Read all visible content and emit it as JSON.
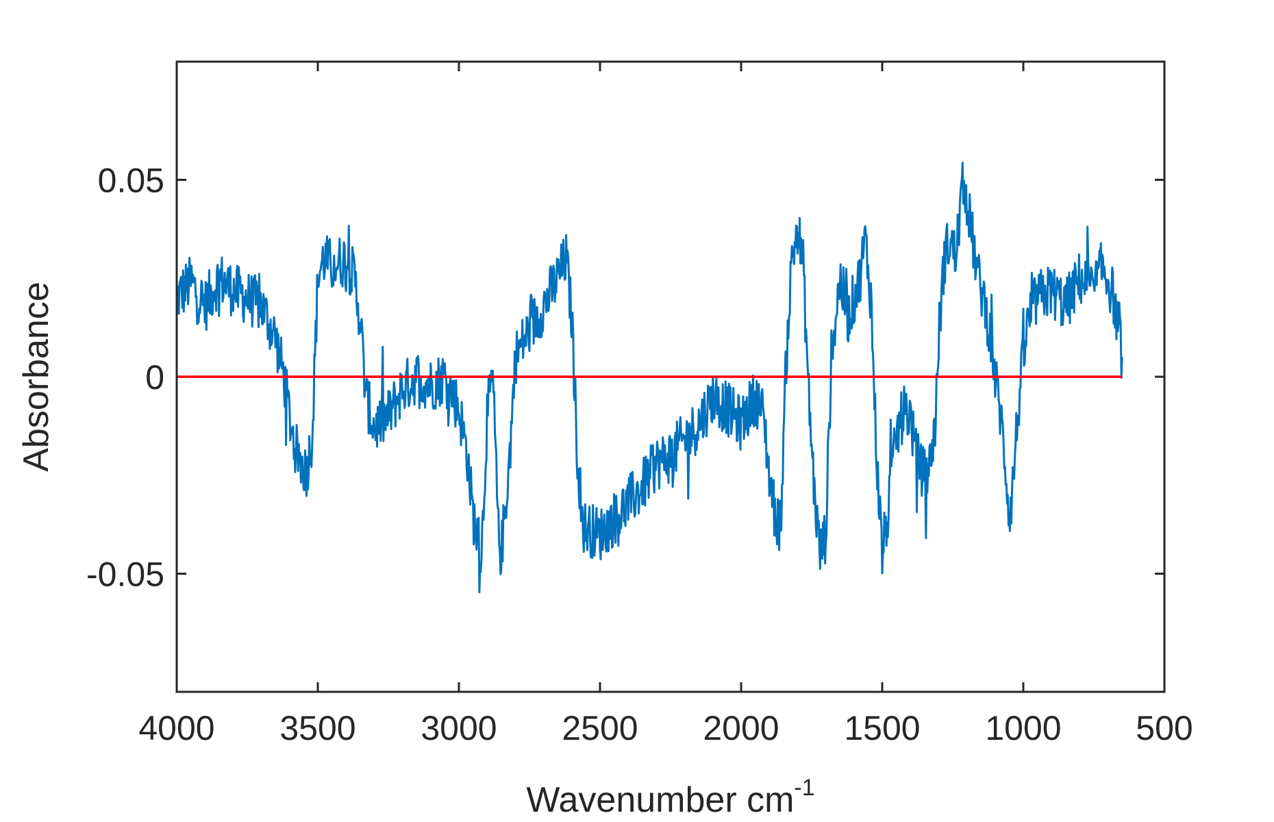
{
  "chart_data": {
    "type": "line",
    "title": "",
    "xlabel": "Wavenumber cm",
    "xlabel_superscript": "-1",
    "ylabel": "Absorbance",
    "xlim": [
      4000,
      500
    ],
    "ylim": [
      -0.08,
      0.08
    ],
    "x_reversed": true,
    "xticks": [
      4000,
      3500,
      3000,
      2500,
      2000,
      1500,
      1000,
      500
    ],
    "xtick_labels": [
      "4000",
      "3500",
      "3000",
      "2500",
      "2000",
      "1500",
      "1000",
      "500"
    ],
    "yticks": [
      0.05,
      0,
      -0.05
    ],
    "ytick_labels": [
      "0.05",
      "0",
      "-0.05"
    ],
    "grid": false,
    "colors": {
      "spectrum": "#0072BD",
      "baseline": "#FF0000",
      "axes": "#262626"
    },
    "series": [
      {
        "name": "spectrum",
        "color": "#0072BD",
        "x": [
          4000,
          3950,
          3900,
          3850,
          3800,
          3750,
          3700,
          3650,
          3620,
          3600,
          3580,
          3560,
          3540,
          3520,
          3500,
          3480,
          3450,
          3400,
          3370,
          3350,
          3330,
          3300,
          3250,
          3200,
          3150,
          3100,
          3050,
          3000,
          2970,
          2950,
          2920,
          2900,
          2880,
          2860,
          2850,
          2820,
          2800,
          2750,
          2700,
          2650,
          2620,
          2600,
          2580,
          2560,
          2500,
          2450,
          2400,
          2350,
          2300,
          2250,
          2200,
          2150,
          2100,
          2050,
          2000,
          1950,
          1920,
          1900,
          1880,
          1860,
          1840,
          1820,
          1800,
          1780,
          1760,
          1740,
          1720,
          1700,
          1680,
          1650,
          1620,
          1600,
          1580,
          1560,
          1540,
          1520,
          1500,
          1480,
          1450,
          1420,
          1400,
          1380,
          1350,
          1330,
          1310,
          1300,
          1280,
          1260,
          1240,
          1220,
          1210,
          1200,
          1180,
          1160,
          1140,
          1120,
          1100,
          1080,
          1060,
          1050,
          1040,
          1020,
          1000,
          980,
          950,
          900,
          850,
          800,
          750,
          720,
          700,
          680,
          660,
          650
        ],
        "y": [
          0.02,
          0.024,
          0.018,
          0.025,
          0.022,
          0.02,
          0.018,
          0.01,
          0.0,
          -0.01,
          -0.018,
          -0.022,
          -0.024,
          -0.015,
          0.025,
          0.03,
          0.028,
          0.03,
          0.025,
          0.015,
          -0.005,
          -0.013,
          -0.01,
          -0.003,
          0.0,
          -0.002,
          0.0,
          -0.008,
          -0.02,
          -0.035,
          -0.045,
          -0.01,
          0.0,
          -0.04,
          -0.045,
          -0.02,
          0.005,
          0.012,
          0.018,
          0.025,
          0.03,
          0.015,
          -0.02,
          -0.038,
          -0.04,
          -0.036,
          -0.032,
          -0.028,
          -0.022,
          -0.02,
          -0.016,
          -0.012,
          -0.005,
          -0.008,
          -0.012,
          -0.005,
          -0.01,
          -0.025,
          -0.035,
          -0.038,
          0.005,
          0.03,
          0.038,
          0.028,
          -0.005,
          -0.03,
          -0.045,
          -0.04,
          0.005,
          0.025,
          0.015,
          0.02,
          0.025,
          0.035,
          0.02,
          -0.02,
          -0.045,
          -0.035,
          -0.015,
          -0.008,
          -0.01,
          -0.02,
          -0.025,
          -0.022,
          -0.01,
          0.01,
          0.03,
          0.035,
          0.03,
          0.045,
          0.05,
          0.045,
          0.035,
          0.025,
          0.02,
          0.012,
          0.0,
          -0.01,
          -0.025,
          -0.035,
          -0.03,
          -0.01,
          0.005,
          0.015,
          0.02,
          0.022,
          0.018,
          0.025,
          0.022,
          0.028,
          0.025,
          0.02,
          0.01,
          0.005
        ]
      },
      {
        "name": "baseline",
        "color": "#FF0000",
        "x": [
          4000,
          650
        ],
        "y": [
          0,
          0
        ]
      }
    ]
  }
}
